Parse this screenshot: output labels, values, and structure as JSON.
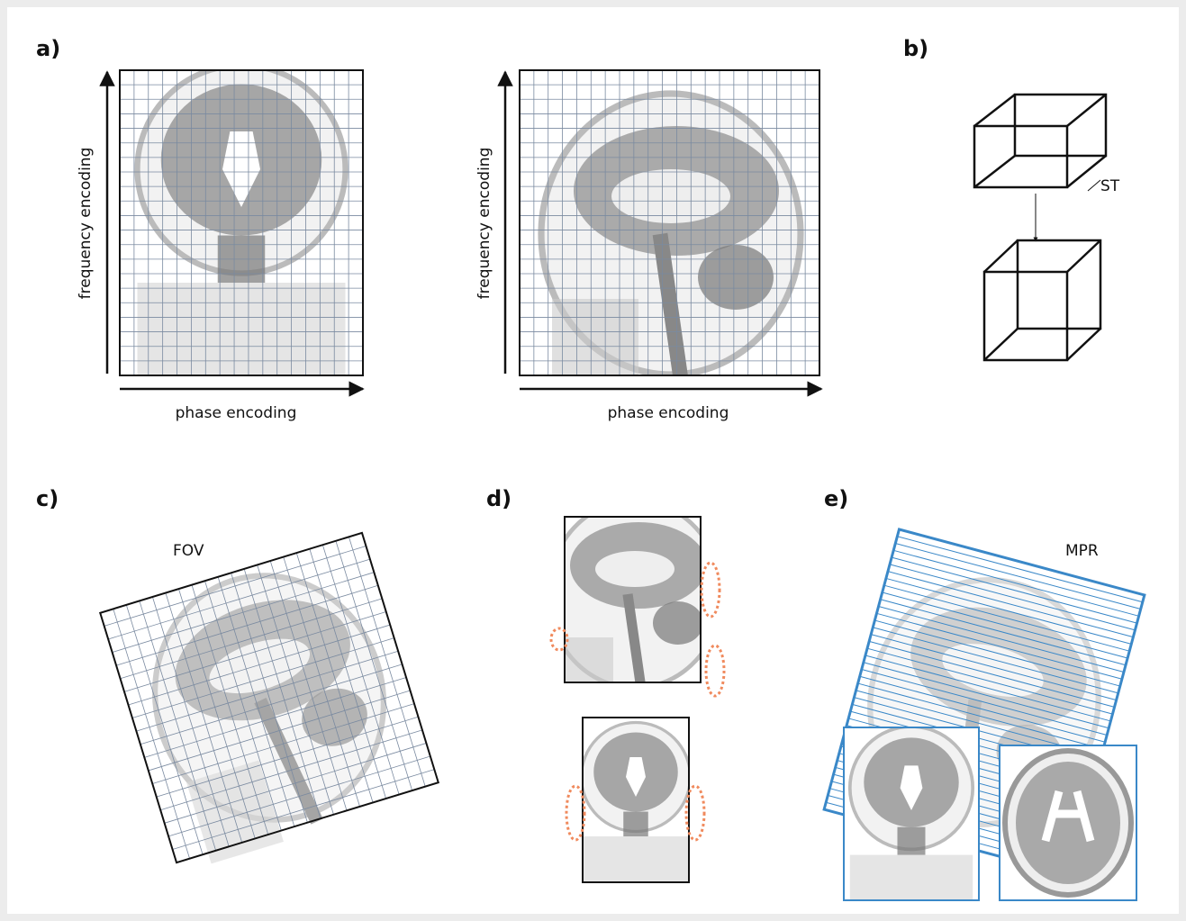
{
  "panel_a": {
    "label": "a)",
    "left": {
      "y_axis": "frequency encoding",
      "x_axis": "phase encoding"
    },
    "right": {
      "y_axis": "frequency encoding",
      "x_axis": "phase encoding"
    }
  },
  "panel_b": {
    "label": "b)",
    "annotation": "ST"
  },
  "panel_c": {
    "label": "c)",
    "annotation": "FOV"
  },
  "panel_d": {
    "label": "d)"
  },
  "panel_e": {
    "label": "e)",
    "annotation": "MPR"
  }
}
